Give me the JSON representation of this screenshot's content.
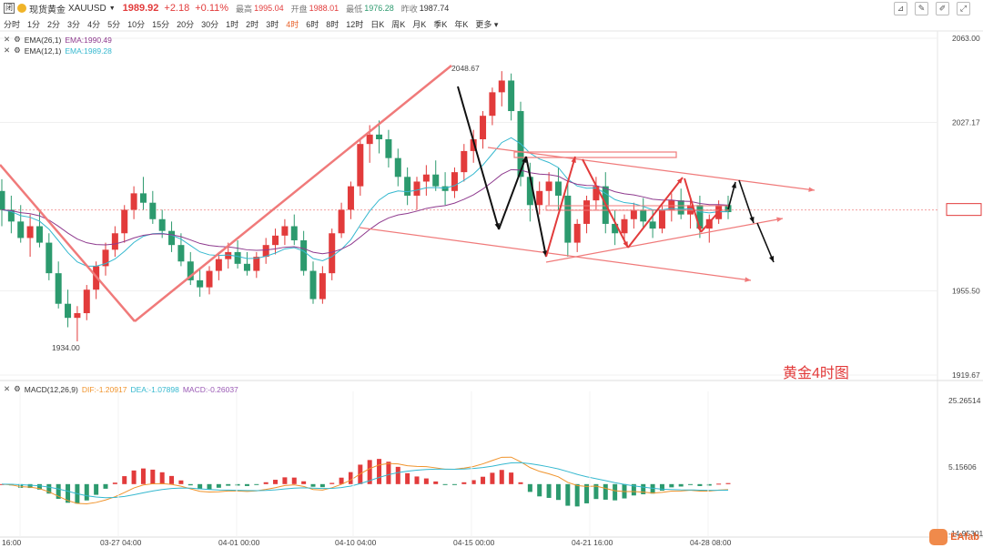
{
  "header": {
    "name": "现货黄金",
    "symbol": "XAUUSD",
    "price": "1989.92",
    "change": "+2.18",
    "change_pct": "+0.11%",
    "high_label": "最高",
    "high": "1995.04",
    "open_label": "开盘",
    "open": "1988.01",
    "low_label": "最低",
    "low": "1976.28",
    "prev_label": "昨收",
    "prev": "1987.74",
    "logo_char": "闭"
  },
  "timeframes": [
    "分时",
    "1分",
    "2分",
    "3分",
    "4分",
    "5分",
    "10分",
    "15分",
    "20分",
    "30分",
    "1时",
    "2时",
    "3时",
    "4时",
    "6时",
    "8时",
    "12时",
    "日K",
    "周K",
    "月K",
    "季K",
    "年K",
    "更多"
  ],
  "active_timeframe": "4时",
  "indicators": {
    "ema26_name": "EMA(26,1)",
    "ema26_value": "EMA:1990.49",
    "ema12_name": "EMA(12,1)",
    "ema12_value": "EMA:1989.28",
    "macd_name": "MACD(12,26,9)",
    "dif": "DIF:-1.20917",
    "dea": "DEA:-1.07898",
    "macd": "MACD:-0.26037"
  },
  "annotation": "黄金4时图",
  "watermark": "EAfab",
  "colors": {
    "up": "#e23b3b",
    "down": "#2c9a6e",
    "ema12": "#35b8cf",
    "ema26": "#8e3a8e",
    "dif": "#f0932b",
    "dea": "#35b8cf",
    "trend": "#f07a7a",
    "arrow_red": "#e23b3b",
    "arrow_black": "#111111"
  },
  "chart_data": {
    "type": "candlestick",
    "y_axis_ticks": [
      "2063.00",
      "2027.17",
      "1989.92",
      "1955.50",
      "1919.67"
    ],
    "x_axis_ticks": [
      "16:00",
      "03-27 04:00",
      "04-01 00:00",
      "04-10 04:00",
      "04-15 00:00",
      "04-21 16:00",
      "04-28 08:00"
    ],
    "price_labels": {
      "high": "2048.67",
      "low": "1934.00"
    },
    "macd_axis_ticks": [
      "25.26514",
      "5.15606",
      "-14.95301"
    ],
    "ylim": [
      1919.67,
      2063.0
    ],
    "candles": [
      [
        1998,
        2003,
        1983,
        1990
      ],
      [
        1990,
        1996,
        1980,
        1985
      ],
      [
        1985,
        1992,
        1976,
        1978
      ],
      [
        1978,
        1988,
        1970,
        1983
      ],
      [
        1983,
        1990,
        1974,
        1976
      ],
      [
        1976,
        1980,
        1960,
        1963
      ],
      [
        1963,
        1968,
        1948,
        1950
      ],
      [
        1950,
        1956,
        1940,
        1944
      ],
      [
        1944,
        1949,
        1934,
        1946
      ],
      [
        1946,
        1958,
        1943,
        1956
      ],
      [
        1956,
        1968,
        1952,
        1966
      ],
      [
        1966,
        1976,
        1962,
        1973
      ],
      [
        1973,
        1983,
        1970,
        1980
      ],
      [
        1980,
        1992,
        1976,
        1990
      ],
      [
        1990,
        2000,
        1986,
        1997
      ],
      [
        1997,
        2004,
        1990,
        1993
      ],
      [
        1993,
        1998,
        1984,
        1986
      ],
      [
        1986,
        1990,
        1978,
        1981
      ],
      [
        1981,
        1985,
        1972,
        1975
      ],
      [
        1975,
        1980,
        1966,
        1968
      ],
      [
        1968,
        1972,
        1958,
        1960
      ],
      [
        1960,
        1965,
        1953,
        1957
      ],
      [
        1957,
        1966,
        1954,
        1964
      ],
      [
        1964,
        1972,
        1960,
        1969
      ],
      [
        1969,
        1976,
        1965,
        1972
      ],
      [
        1972,
        1977,
        1965,
        1967
      ],
      [
        1967,
        1972,
        1962,
        1964
      ],
      [
        1964,
        1972,
        1961,
        1970
      ],
      [
        1970,
        1978,
        1967,
        1975
      ],
      [
        1975,
        1982,
        1971,
        1979
      ],
      [
        1979,
        1986,
        1975,
        1983
      ],
      [
        1983,
        1988,
        1975,
        1977
      ],
      [
        1977,
        1981,
        1962,
        1964
      ],
      [
        1964,
        1968,
        1950,
        1952
      ],
      [
        1952,
        1966,
        1950,
        1963
      ],
      [
        1963,
        1982,
        1960,
        1980
      ],
      [
        1980,
        1993,
        1978,
        1990
      ],
      [
        1990,
        2002,
        1986,
        2000
      ],
      [
        2000,
        2020,
        1996,
        2018
      ],
      [
        2018,
        2026,
        2010,
        2022
      ],
      [
        2022,
        2028,
        2014,
        2020
      ],
      [
        2020,
        2024,
        2008,
        2012
      ],
      [
        2012,
        2016,
        2000,
        2004
      ],
      [
        2004,
        2008,
        1992,
        1996
      ],
      [
        1996,
        2004,
        1990,
        2002
      ],
      [
        2002,
        2009,
        1996,
        2005
      ],
      [
        2005,
        2011,
        1998,
        2000
      ],
      [
        2000,
        2006,
        1992,
        1998
      ],
      [
        1998,
        2008,
        1995,
        2006
      ],
      [
        2006,
        2018,
        2002,
        2015
      ],
      [
        2015,
        2024,
        2010,
        2020
      ],
      [
        2020,
        2032,
        2016,
        2030
      ],
      [
        2030,
        2042,
        2026,
        2040
      ],
      [
        2040,
        2049,
        2034,
        2045
      ],
      [
        2045,
        2048,
        2028,
        2032
      ],
      [
        2032,
        2036,
        2000,
        2004
      ],
      [
        2004,
        2010,
        1985,
        1992
      ],
      [
        1992,
        2002,
        1988,
        1998
      ],
      [
        1998,
        2006,
        1992,
        2002
      ],
      [
        2002,
        2008,
        1990,
        1996
      ],
      [
        1996,
        2002,
        1970,
        1976
      ],
      [
        1976,
        1986,
        1972,
        1984
      ],
      [
        1984,
        1996,
        1980,
        1994
      ],
      [
        1994,
        2004,
        1990,
        2000
      ],
      [
        2000,
        2006,
        1980,
        1984
      ],
      [
        1984,
        1990,
        1975,
        1980
      ],
      [
        1980,
        1988,
        1976,
        1986
      ],
      [
        1986,
        1993,
        1982,
        1990
      ],
      [
        1990,
        1995,
        1982,
        1985
      ],
      [
        1985,
        1990,
        1978,
        1982
      ],
      [
        1982,
        1992,
        1980,
        1990
      ],
      [
        1990,
        1997,
        1985,
        1994
      ],
      [
        1994,
        1999,
        1986,
        1988
      ],
      [
        1988,
        1995,
        1982,
        1992
      ],
      [
        1992,
        1996,
        1978,
        1982
      ],
      [
        1982,
        1988,
        1976,
        1986
      ],
      [
        1986,
        1994,
        1984,
        1992
      ],
      [
        1992,
        1996,
        1986,
        1989
      ]
    ]
  }
}
